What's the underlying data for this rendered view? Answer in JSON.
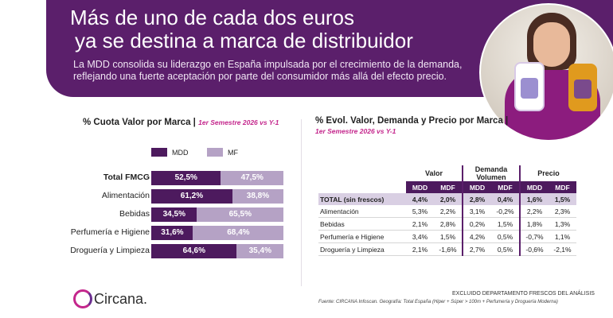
{
  "header": {
    "title_line1": "Más de uno de cada dos euros",
    "title_line2": "ya se destina a marca de distribuidor",
    "subtitle_line1": "La MDD consolida su liderazgo en España impulsada por el crecimiento de la demanda,",
    "subtitle_line2": "reflejando una fuerte aceptación por parte del consumidor más allá del efecto precio."
  },
  "left_chart": {
    "title": "% Cuota Valor por Marca |",
    "period": "1er Semestre 2026 vs Y-1",
    "legend": [
      {
        "label": "MDD",
        "color": "#4d1a5e"
      },
      {
        "label": "MF",
        "color": "#b5a2c5"
      }
    ]
  },
  "chart_data": {
    "type": "bar",
    "stacked": true,
    "orientation": "horizontal",
    "title": "% Cuota Valor por Marca",
    "categories": [
      "Total FMCG",
      "Alimentación",
      "Bebidas",
      "Perfumería e Higiene",
      "Droguería y Limpieza"
    ],
    "series": [
      {
        "name": "MDD",
        "values": [
          52.5,
          61.2,
          34.5,
          31.6,
          64.6
        ],
        "labels": [
          "52,5%",
          "61,2%",
          "34,5%",
          "31,6%",
          "64,6%"
        ]
      },
      {
        "name": "MF",
        "values": [
          47.5,
          38.8,
          65.5,
          68.4,
          35.4
        ],
        "labels": [
          "47,5%",
          "38,8%",
          "65,5%",
          "68,4%",
          "35,4%"
        ]
      }
    ]
  },
  "right_table": {
    "title": "% Evol. Valor, Demanda y Precio por Marca |",
    "period": "1er Semestre 2026 vs Y-1",
    "groups": [
      "Valor",
      "Demanda Volumen",
      "Precio"
    ],
    "subheaders": [
      "MDD",
      "MDF",
      "MDD",
      "MDF",
      "MDD",
      "MDF"
    ],
    "rows": [
      {
        "label": "TOTAL (sin frescos)",
        "values": [
          "4,4%",
          "2,0%",
          "2,8%",
          "0,4%",
          "1,6%",
          "1,5%"
        ]
      },
      {
        "label": "Alimentación",
        "values": [
          "5,3%",
          "2,2%",
          "3,1%",
          "-0,2%",
          "2,2%",
          "2,3%"
        ]
      },
      {
        "label": "Bebidas",
        "values": [
          "2,1%",
          "2,8%",
          "0,2%",
          "1,5%",
          "1,8%",
          "1,3%"
        ]
      },
      {
        "label": "Perfumería e Higiene",
        "values": [
          "3,4%",
          "1,5%",
          "4,2%",
          "0,5%",
          "-0,7%",
          "1,1%"
        ]
      },
      {
        "label": "Droguería y Limpieza",
        "values": [
          "2,1%",
          "-1,6%",
          "2,7%",
          "0,5%",
          "-0,6%",
          "-2,1%"
        ]
      }
    ]
  },
  "footer": {
    "logo_text": "Circana.",
    "note": "EXCLUIDO DEPARTAMENTO FRESCOS DEL ANÁLISIS",
    "source": "Fuente: CIRCANA Infoscan. Geografía: Total España (Hiper + Súper > 100m + Perfumería y Droguería Moderna)"
  }
}
